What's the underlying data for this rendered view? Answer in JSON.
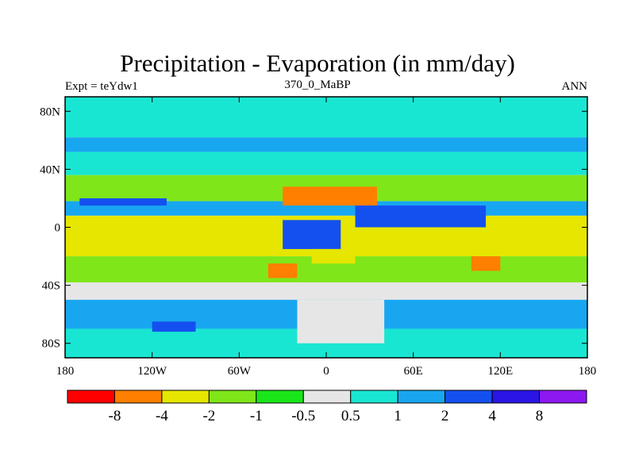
{
  "chart_data": {
    "type": "heatmap",
    "title": "Precipitation - Evaporation (in mm/day)",
    "subtitle_left": "Expt = teYdw1",
    "subtitle_center": "370_0_MaBP",
    "subtitle_right": "ANN",
    "x_ticks": [
      "180",
      "120W",
      "60W",
      "0",
      "60E",
      "120E",
      "180"
    ],
    "x_tick_values": [
      -180,
      -120,
      -60,
      0,
      60,
      120,
      180
    ],
    "y_ticks": [
      "80N",
      "40N",
      "0",
      "40S",
      "80S"
    ],
    "y_tick_values": [
      80,
      40,
      0,
      -40,
      -80
    ],
    "xlim": [
      -180,
      180
    ],
    "ylim": [
      -90,
      90
    ],
    "colorbar": {
      "levels": [
        "-8",
        "-4",
        "-2",
        "-1",
        "-0.5",
        "0.5",
        "1",
        "2",
        "4",
        "8"
      ],
      "colors": [
        "#ff0000",
        "#ff7f00",
        "#e6e600",
        "#7fe619",
        "#19e619",
        "#e6e6e6",
        "#19e6d2",
        "#19a6f0",
        "#1450f0",
        "#2b14e6",
        "#8c19f0"
      ]
    },
    "regions": [
      {
        "lon": [
          -180,
          180
        ],
        "lat": [
          62,
          90
        ],
        "value": 0.7
      },
      {
        "lon": [
          -180,
          180
        ],
        "lat": [
          52,
          62
        ],
        "value": 1.5
      },
      {
        "lon": [
          -180,
          180
        ],
        "lat": [
          36,
          52
        ],
        "value": 0.7
      },
      {
        "lon": [
          -180,
          180
        ],
        "lat": [
          18,
          36
        ],
        "value": -1.5
      },
      {
        "lon": [
          -180,
          180
        ],
        "lat": [
          8,
          18
        ],
        "value": 1.5
      },
      {
        "lon": [
          -180,
          180
        ],
        "lat": [
          -20,
          8
        ],
        "value": -3
      },
      {
        "lon": [
          -180,
          180
        ],
        "lat": [
          -38,
          -20
        ],
        "value": -1.5
      },
      {
        "lon": [
          -180,
          180
        ],
        "lat": [
          -50,
          -38
        ],
        "value": 0
      },
      {
        "lon": [
          -180,
          180
        ],
        "lat": [
          -70,
          -50
        ],
        "value": 1.5
      },
      {
        "lon": [
          -180,
          180
        ],
        "lat": [
          -90,
          -70
        ],
        "value": 0.7
      },
      {
        "lon": [
          -30,
          35
        ],
        "lat": [
          15,
          28
        ],
        "value": -5
      },
      {
        "lon": [
          20,
          110
        ],
        "lat": [
          0,
          15
        ],
        "value": 3
      },
      {
        "lon": [
          -30,
          10
        ],
        "lat": [
          -15,
          5
        ],
        "value": 3
      },
      {
        "lon": [
          -170,
          -110
        ],
        "lat": [
          15,
          20
        ],
        "value": 3
      },
      {
        "lon": [
          -10,
          20
        ],
        "lat": [
          -25,
          -15
        ],
        "value": -3
      },
      {
        "lon": [
          100,
          120
        ],
        "lat": [
          -30,
          -20
        ],
        "value": -5
      },
      {
        "lon": [
          -40,
          -20
        ],
        "lat": [
          -35,
          -25
        ],
        "value": -5
      },
      {
        "lon": [
          -120,
          -90
        ],
        "lat": [
          -72,
          -65
        ],
        "value": 3
      },
      {
        "lon": [
          -20,
          40
        ],
        "lat": [
          -80,
          -50
        ],
        "value": 0
      }
    ]
  }
}
